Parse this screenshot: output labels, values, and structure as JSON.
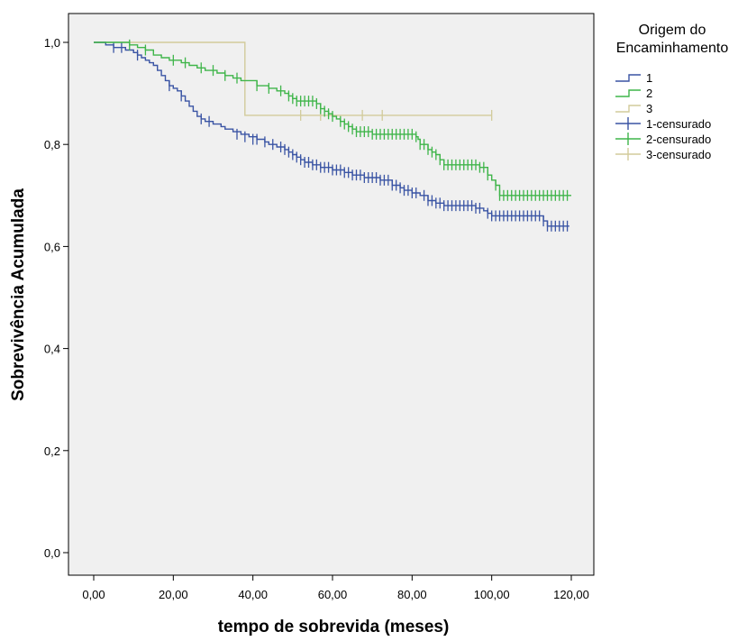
{
  "chart_data": {
    "type": "line",
    "subtype": "kaplan-meier step survival curve",
    "xlabel": "tempo de sobrevida (meses)",
    "ylabel": "Sobrevivência Acumulada",
    "xlim": [
      -6,
      126
    ],
    "ylim": [
      -0.05,
      1.05
    ],
    "x_ticks": [
      0,
      20,
      40,
      60,
      80,
      100,
      120
    ],
    "x_tick_labels": [
      "0,00",
      "20,00",
      "40,00",
      "60,00",
      "80,00",
      "100,00",
      "120,00"
    ],
    "y_ticks": [
      0,
      0.2,
      0.4,
      0.6,
      0.8,
      1.0
    ],
    "y_tick_labels": [
      "0,0",
      "0,2",
      "0,4",
      "0,6",
      "0,8",
      "1,0"
    ],
    "grid": false,
    "plot_background": "#f0f0f0",
    "legend": {
      "title_lines": [
        "Origem do",
        "Encaminhamento"
      ],
      "position": "right",
      "entries": [
        {
          "label": "1",
          "series": 0,
          "style": "step"
        },
        {
          "label": "2",
          "series": 1,
          "style": "step"
        },
        {
          "label": "3",
          "series": 2,
          "style": "step"
        },
        {
          "label": "1-censurado",
          "series": 0,
          "style": "censor"
        },
        {
          "label": "2-censurado",
          "series": 1,
          "style": "censor"
        },
        {
          "label": "3-censurado",
          "series": 2,
          "style": "censor"
        }
      ]
    },
    "series": [
      {
        "name": "1",
        "color": "#3a54a4",
        "steps": [
          [
            0,
            1.0
          ],
          [
            3,
            0.995
          ],
          [
            5,
            0.99
          ],
          [
            8,
            0.985
          ],
          [
            10,
            0.98
          ],
          [
            11,
            0.975
          ],
          [
            12,
            0.97
          ],
          [
            13,
            0.965
          ],
          [
            14,
            0.96
          ],
          [
            15,
            0.955
          ],
          [
            16,
            0.945
          ],
          [
            17,
            0.935
          ],
          [
            18,
            0.925
          ],
          [
            19,
            0.915
          ],
          [
            20,
            0.91
          ],
          [
            21,
            0.905
          ],
          [
            22,
            0.895
          ],
          [
            23,
            0.885
          ],
          [
            24,
            0.875
          ],
          [
            25,
            0.865
          ],
          [
            26,
            0.855
          ],
          [
            27,
            0.85
          ],
          [
            28,
            0.845
          ],
          [
            30,
            0.84
          ],
          [
            32,
            0.835
          ],
          [
            33,
            0.83
          ],
          [
            35,
            0.825
          ],
          [
            37,
            0.82
          ],
          [
            39,
            0.815
          ],
          [
            41,
            0.81
          ],
          [
            43,
            0.805
          ],
          [
            44,
            0.8
          ],
          [
            46,
            0.795
          ],
          [
            48,
            0.79
          ],
          [
            49,
            0.785
          ],
          [
            50,
            0.78
          ],
          [
            51,
            0.775
          ],
          [
            52,
            0.77
          ],
          [
            53,
            0.765
          ],
          [
            55,
            0.76
          ],
          [
            57,
            0.755
          ],
          [
            60,
            0.75
          ],
          [
            63,
            0.745
          ],
          [
            65,
            0.74
          ],
          [
            68,
            0.735
          ],
          [
            72,
            0.73
          ],
          [
            75,
            0.72
          ],
          [
            77,
            0.715
          ],
          [
            78,
            0.71
          ],
          [
            80,
            0.705
          ],
          [
            82,
            0.7
          ],
          [
            84,
            0.69
          ],
          [
            86,
            0.685
          ],
          [
            88,
            0.68
          ],
          [
            96,
            0.675
          ],
          [
            98,
            0.67
          ],
          [
            99,
            0.665
          ],
          [
            100,
            0.66
          ],
          [
            113,
            0.65
          ],
          [
            114,
            0.64
          ],
          [
            119.5,
            0.64
          ]
        ],
        "censored": [
          [
            5,
            0.99
          ],
          [
            7,
            0.99
          ],
          [
            11,
            0.975
          ],
          [
            19,
            0.915
          ],
          [
            22,
            0.895
          ],
          [
            27,
            0.85
          ],
          [
            29,
            0.845
          ],
          [
            36,
            0.82
          ],
          [
            38,
            0.815
          ],
          [
            40,
            0.81
          ],
          [
            41,
            0.81
          ],
          [
            43,
            0.805
          ],
          [
            45,
            0.8
          ],
          [
            47,
            0.795
          ],
          [
            48,
            0.79
          ],
          [
            49,
            0.785
          ],
          [
            50,
            0.78
          ],
          [
            51,
            0.775
          ],
          [
            52,
            0.77
          ],
          [
            53,
            0.765
          ],
          [
            54,
            0.765
          ],
          [
            55,
            0.76
          ],
          [
            56,
            0.76
          ],
          [
            57,
            0.755
          ],
          [
            58,
            0.755
          ],
          [
            59,
            0.755
          ],
          [
            60,
            0.75
          ],
          [
            61,
            0.75
          ],
          [
            62,
            0.75
          ],
          [
            63,
            0.745
          ],
          [
            64,
            0.745
          ],
          [
            65,
            0.74
          ],
          [
            66,
            0.74
          ],
          [
            67,
            0.74
          ],
          [
            68,
            0.735
          ],
          [
            69,
            0.735
          ],
          [
            70,
            0.735
          ],
          [
            71,
            0.735
          ],
          [
            72,
            0.73
          ],
          [
            73,
            0.73
          ],
          [
            74,
            0.73
          ],
          [
            75,
            0.72
          ],
          [
            76,
            0.72
          ],
          [
            77,
            0.715
          ],
          [
            78,
            0.71
          ],
          [
            79,
            0.71
          ],
          [
            80,
            0.705
          ],
          [
            81,
            0.705
          ],
          [
            83,
            0.7
          ],
          [
            84,
            0.69
          ],
          [
            85,
            0.69
          ],
          [
            86,
            0.685
          ],
          [
            87,
            0.685
          ],
          [
            88,
            0.68
          ],
          [
            89,
            0.68
          ],
          [
            90,
            0.68
          ],
          [
            91,
            0.68
          ],
          [
            92,
            0.68
          ],
          [
            93,
            0.68
          ],
          [
            94,
            0.68
          ],
          [
            95,
            0.68
          ],
          [
            96,
            0.675
          ],
          [
            97,
            0.675
          ],
          [
            99,
            0.665
          ],
          [
            100,
            0.66
          ],
          [
            101,
            0.66
          ],
          [
            102,
            0.66
          ],
          [
            103,
            0.66
          ],
          [
            104,
            0.66
          ],
          [
            105,
            0.66
          ],
          [
            106,
            0.66
          ],
          [
            107,
            0.66
          ],
          [
            108,
            0.66
          ],
          [
            109,
            0.66
          ],
          [
            110,
            0.66
          ],
          [
            111,
            0.66
          ],
          [
            112,
            0.66
          ],
          [
            113,
            0.65
          ],
          [
            114,
            0.64
          ],
          [
            115,
            0.64
          ],
          [
            116,
            0.64
          ],
          [
            117,
            0.64
          ],
          [
            118,
            0.64
          ],
          [
            119,
            0.64
          ]
        ]
      },
      {
        "name": "2",
        "color": "#3fb54a",
        "steps": [
          [
            0,
            1.0
          ],
          [
            9,
            0.995
          ],
          [
            11,
            0.99
          ],
          [
            13,
            0.985
          ],
          [
            15,
            0.975
          ],
          [
            17,
            0.97
          ],
          [
            19,
            0.965
          ],
          [
            22,
            0.96
          ],
          [
            24,
            0.955
          ],
          [
            26,
            0.95
          ],
          [
            28,
            0.945
          ],
          [
            31,
            0.94
          ],
          [
            33,
            0.935
          ],
          [
            35,
            0.93
          ],
          [
            37,
            0.925
          ],
          [
            41,
            0.915
          ],
          [
            44,
            0.91
          ],
          [
            46,
            0.905
          ],
          [
            48,
            0.9
          ],
          [
            49,
            0.895
          ],
          [
            50,
            0.89
          ],
          [
            51,
            0.885
          ],
          [
            56,
            0.88
          ],
          [
            57,
            0.87
          ],
          [
            58,
            0.865
          ],
          [
            59,
            0.86
          ],
          [
            60,
            0.855
          ],
          [
            61,
            0.85
          ],
          [
            62,
            0.845
          ],
          [
            63,
            0.84
          ],
          [
            64,
            0.835
          ],
          [
            65,
            0.83
          ],
          [
            66,
            0.825
          ],
          [
            70,
            0.82
          ],
          [
            81,
            0.815
          ],
          [
            81.5,
            0.81
          ],
          [
            82,
            0.8
          ],
          [
            84,
            0.79
          ],
          [
            85,
            0.785
          ],
          [
            86,
            0.78
          ],
          [
            87,
            0.77
          ],
          [
            88,
            0.76
          ],
          [
            97,
            0.755
          ],
          [
            99,
            0.74
          ],
          [
            100,
            0.73
          ],
          [
            101,
            0.72
          ],
          [
            102,
            0.7
          ],
          [
            120,
            0.7
          ]
        ],
        "censored": [
          [
            9,
            0.995
          ],
          [
            13,
            0.985
          ],
          [
            20,
            0.965
          ],
          [
            23,
            0.96
          ],
          [
            27,
            0.95
          ],
          [
            30,
            0.945
          ],
          [
            33,
            0.935
          ],
          [
            36,
            0.93
          ],
          [
            41,
            0.915
          ],
          [
            44,
            0.91
          ],
          [
            47,
            0.905
          ],
          [
            49,
            0.895
          ],
          [
            50,
            0.89
          ],
          [
            51,
            0.885
          ],
          [
            52,
            0.885
          ],
          [
            53,
            0.885
          ],
          [
            54,
            0.885
          ],
          [
            55,
            0.885
          ],
          [
            56,
            0.88
          ],
          [
            57,
            0.87
          ],
          [
            58,
            0.865
          ],
          [
            59,
            0.86
          ],
          [
            60,
            0.855
          ],
          [
            62,
            0.845
          ],
          [
            63,
            0.84
          ],
          [
            64,
            0.835
          ],
          [
            65,
            0.83
          ],
          [
            66,
            0.825
          ],
          [
            67,
            0.825
          ],
          [
            68,
            0.825
          ],
          [
            69,
            0.825
          ],
          [
            70,
            0.82
          ],
          [
            71,
            0.82
          ],
          [
            72,
            0.82
          ],
          [
            73,
            0.82
          ],
          [
            74,
            0.82
          ],
          [
            75,
            0.82
          ],
          [
            76,
            0.82
          ],
          [
            77,
            0.82
          ],
          [
            78,
            0.82
          ],
          [
            79,
            0.82
          ],
          [
            80,
            0.82
          ],
          [
            81,
            0.815
          ],
          [
            82,
            0.8
          ],
          [
            83,
            0.8
          ],
          [
            84,
            0.79
          ],
          [
            85,
            0.785
          ],
          [
            86,
            0.78
          ],
          [
            87,
            0.77
          ],
          [
            88,
            0.76
          ],
          [
            89,
            0.76
          ],
          [
            90,
            0.76
          ],
          [
            91,
            0.76
          ],
          [
            92,
            0.76
          ],
          [
            93,
            0.76
          ],
          [
            94,
            0.76
          ],
          [
            95,
            0.76
          ],
          [
            96,
            0.76
          ],
          [
            97,
            0.755
          ],
          [
            98,
            0.755
          ],
          [
            99,
            0.74
          ],
          [
            101,
            0.72
          ],
          [
            102,
            0.7
          ],
          [
            103,
            0.7
          ],
          [
            104,
            0.7
          ],
          [
            105,
            0.7
          ],
          [
            106,
            0.7
          ],
          [
            107,
            0.7
          ],
          [
            108,
            0.7
          ],
          [
            109,
            0.7
          ],
          [
            110,
            0.7
          ],
          [
            111,
            0.7
          ],
          [
            112,
            0.7
          ],
          [
            113,
            0.7
          ],
          [
            114,
            0.7
          ],
          [
            115,
            0.7
          ],
          [
            116,
            0.7
          ],
          [
            117,
            0.7
          ],
          [
            118,
            0.7
          ],
          [
            119,
            0.7
          ]
        ]
      },
      {
        "name": "3",
        "color": "#d2cb9b",
        "steps": [
          [
            0,
            1.0
          ],
          [
            38,
            0.857
          ],
          [
            100,
            0.857
          ]
        ],
        "censored": [
          [
            52,
            0.857
          ],
          [
            57,
            0.857
          ],
          [
            67.5,
            0.857
          ],
          [
            72.5,
            0.857
          ],
          [
            100,
            0.857
          ]
        ]
      }
    ]
  }
}
